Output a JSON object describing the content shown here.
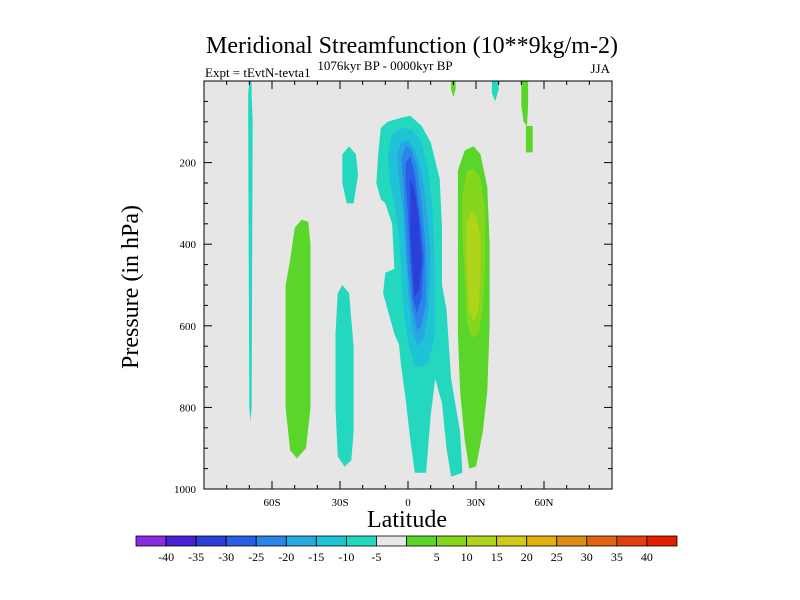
{
  "chart_data": {
    "type": "contour",
    "title": "Meridional Streamfunction (10**9kg/m-2)",
    "subtitle_left": "Expt = tEvtN-tevta1",
    "subtitle_center": "1076kyr BP - 0000kyr BP",
    "subtitle_right": "JJA",
    "xlabel": "Latitude",
    "ylabel": "Pressure (in hPa)",
    "xlim": [
      -90,
      90
    ],
    "ylim": [
      0,
      1000
    ],
    "y_inverted": true,
    "x_ticks": [
      {
        "value": -60,
        "label": "60S"
      },
      {
        "value": -30,
        "label": "30S"
      },
      {
        "value": 0,
        "label": "0"
      },
      {
        "value": 30,
        "label": "30N"
      },
      {
        "value": 60,
        "label": "60N"
      }
    ],
    "y_ticks": [
      {
        "value": 200,
        "label": "200"
      },
      {
        "value": 400,
        "label": "400"
      },
      {
        "value": 600,
        "label": "600"
      },
      {
        "value": 800,
        "label": "800"
      },
      {
        "value": 1000,
        "label": "1000"
      }
    ],
    "colorbar": {
      "colors": [
        "#8a2be2",
        "#4b1fd6",
        "#2c3fd8",
        "#2a5ee6",
        "#2a86e8",
        "#27a8e0",
        "#1fc3d6",
        "#24d8c0",
        "#e6e6e6",
        "#5ad52a",
        "#86d61e",
        "#b0d41c",
        "#d2c81a",
        "#e0b010",
        "#e08c10",
        "#e06410",
        "#e04010",
        "#e02000"
      ],
      "labels": [
        "-40",
        "-35",
        "-30",
        "-25",
        "-20",
        "-15",
        "-10",
        "-5",
        "5",
        "10",
        "15",
        "20",
        "25",
        "30",
        "35",
        "40"
      ]
    },
    "contour_regions": [
      {
        "level": "-5",
        "color": "#24d8c0",
        "points": [
          [
            -70,
            0
          ],
          [
            -69,
            0
          ],
          [
            -69,
            30
          ],
          [
            -68.5,
            100
          ],
          [
            -69,
            800
          ],
          [
            -69.5,
            835
          ],
          [
            -70,
            800
          ],
          [
            -70.5,
            100
          ],
          [
            -70.5,
            30
          ]
        ]
      },
      {
        "level": "5",
        "color": "#5ad52a",
        "points": [
          [
            -52,
            440
          ],
          [
            -50,
            360
          ],
          [
            -47,
            340
          ],
          [
            -44,
            345
          ],
          [
            -43,
            400
          ],
          [
            -43,
            800
          ],
          [
            -45,
            900
          ],
          [
            -49,
            925
          ],
          [
            -52,
            905
          ],
          [
            -54,
            800
          ],
          [
            -54,
            500
          ]
        ]
      },
      {
        "level": "-5",
        "color": "#24d8c0",
        "points": [
          [
            -29,
            180
          ],
          [
            -26,
            160
          ],
          [
            -23,
            180
          ],
          [
            -22,
            230
          ],
          [
            -24,
            300
          ],
          [
            -27,
            300
          ],
          [
            -29,
            250
          ]
        ]
      },
      {
        "level": "-5",
        "color": "#24d8c0",
        "points": [
          [
            -31,
            520
          ],
          [
            -29,
            500
          ],
          [
            -26,
            520
          ],
          [
            -24,
            650
          ],
          [
            -24,
            860
          ],
          [
            -25,
            930
          ],
          [
            -28,
            945
          ],
          [
            -31,
            920
          ],
          [
            -32,
            800
          ],
          [
            -32,
            620
          ]
        ]
      },
      {
        "level": "-5",
        "color": "#24d8c0",
        "points": [
          [
            -14,
            250
          ],
          [
            -13,
            170
          ],
          [
            -12,
            115
          ],
          [
            -9,
            100
          ],
          [
            -3,
            90
          ],
          [
            1,
            85
          ],
          [
            6,
            110
          ],
          [
            10,
            150
          ],
          [
            14,
            240
          ],
          [
            15,
            360
          ],
          [
            15,
            500
          ],
          [
            17,
            560
          ],
          [
            19,
            730
          ],
          [
            23,
            860
          ],
          [
            24,
            960
          ],
          [
            19,
            970
          ],
          [
            17,
            900
          ],
          [
            15,
            790
          ],
          [
            12,
            730
          ],
          [
            10,
            820
          ],
          [
            8,
            960
          ],
          [
            3,
            960
          ],
          [
            1,
            880
          ],
          [
            -1,
            780
          ],
          [
            -3,
            700
          ],
          [
            -4,
            645
          ],
          [
            -6,
            620
          ],
          [
            -11,
            520
          ],
          [
            -10,
            470
          ],
          [
            -6,
            460
          ],
          [
            -7,
            350
          ],
          [
            -10,
            300
          ],
          [
            -12,
            290
          ]
        ]
      },
      {
        "level": "-10",
        "color": "#1fc3d6",
        "points": [
          [
            -9,
            180
          ],
          [
            -7,
            130
          ],
          [
            -3,
            115
          ],
          [
            2,
            120
          ],
          [
            6,
            150
          ],
          [
            9,
            220
          ],
          [
            11,
            330
          ],
          [
            12,
            470
          ],
          [
            12,
            620
          ],
          [
            9,
            690
          ],
          [
            6,
            700
          ],
          [
            3,
            700
          ],
          [
            0,
            640
          ],
          [
            -2,
            560
          ],
          [
            -3,
            470
          ],
          [
            -4,
            380
          ],
          [
            -6,
            300
          ],
          [
            -8,
            250
          ]
        ]
      },
      {
        "level": "-15",
        "color": "#27a8e0",
        "points": [
          [
            -5,
            185
          ],
          [
            -3,
            150
          ],
          [
            0,
            145
          ],
          [
            3,
            170
          ],
          [
            6,
            220
          ],
          [
            8,
            300
          ],
          [
            10,
            420
          ],
          [
            9,
            560
          ],
          [
            7,
            630
          ],
          [
            4,
            650
          ],
          [
            2,
            610
          ],
          [
            0,
            520
          ],
          [
            -1,
            430
          ],
          [
            -2,
            330
          ],
          [
            -4,
            240
          ]
        ]
      },
      {
        "level": "-20",
        "color": "#2a86e8",
        "points": [
          [
            -3,
            190
          ],
          [
            -1,
            160
          ],
          [
            1,
            165
          ],
          [
            4,
            210
          ],
          [
            6,
            300
          ],
          [
            8,
            420
          ],
          [
            8,
            540
          ],
          [
            6,
            600
          ],
          [
            4,
            610
          ],
          [
            2,
            560
          ],
          [
            0,
            470
          ],
          [
            -1,
            360
          ],
          [
            -2,
            260
          ]
        ]
      },
      {
        "level": "-25",
        "color": "#2a5ee6",
        "points": [
          [
            -1,
            200
          ],
          [
            1,
            185
          ],
          [
            3,
            230
          ],
          [
            5,
            320
          ],
          [
            7,
            430
          ],
          [
            6,
            530
          ],
          [
            4,
            570
          ],
          [
            2,
            530
          ],
          [
            1,
            440
          ],
          [
            0,
            330
          ],
          [
            -1,
            250
          ]
        ]
      },
      {
        "level": "-30",
        "color": "#2c3fd8",
        "points": [
          [
            1,
            240
          ],
          [
            3,
            270
          ],
          [
            5,
            350
          ],
          [
            6,
            440
          ],
          [
            5,
            510
          ],
          [
            3,
            530
          ],
          [
            2,
            470
          ],
          [
            1,
            370
          ],
          [
            1,
            290
          ]
        ]
      },
      {
        "level": "5",
        "color": "#5ad52a",
        "points": [
          [
            22,
            220
          ],
          [
            25,
            170
          ],
          [
            29,
            160
          ],
          [
            32,
            180
          ],
          [
            35,
            260
          ],
          [
            36,
            400
          ],
          [
            36,
            600
          ],
          [
            35,
            760
          ],
          [
            33,
            860
          ],
          [
            30,
            945
          ],
          [
            27,
            950
          ],
          [
            25,
            880
          ],
          [
            23,
            760
          ],
          [
            22,
            620
          ],
          [
            22,
            420
          ]
        ]
      },
      {
        "level": "10",
        "color": "#86d61e",
        "points": [
          [
            24,
            280
          ],
          [
            26,
            220
          ],
          [
            29,
            215
          ],
          [
            32,
            240
          ],
          [
            34,
            320
          ],
          [
            34,
            450
          ],
          [
            33,
            560
          ],
          [
            31,
            620
          ],
          [
            28,
            630
          ],
          [
            26,
            590
          ],
          [
            25,
            480
          ],
          [
            24,
            380
          ]
        ]
      },
      {
        "level": "15",
        "color": "#b0d41c",
        "points": [
          [
            26,
            350
          ],
          [
            28,
            320
          ],
          [
            30,
            330
          ],
          [
            32,
            380
          ],
          [
            32,
            480
          ],
          [
            31,
            560
          ],
          [
            29,
            590
          ],
          [
            27,
            560
          ],
          [
            26,
            470
          ]
        ]
      },
      {
        "level": "5",
        "color": "#5ad52a",
        "points": [
          [
            19,
            0
          ],
          [
            21,
            0
          ],
          [
            21,
            20
          ],
          [
            20,
            40
          ],
          [
            19,
            20
          ]
        ]
      },
      {
        "level": "-5",
        "color": "#24d8c0",
        "points": [
          [
            37,
            0
          ],
          [
            40,
            0
          ],
          [
            40,
            20
          ],
          [
            38.5,
            50
          ],
          [
            37,
            30
          ]
        ]
      },
      {
        "level": "5",
        "color": "#5ad52a",
        "points": [
          [
            50,
            0
          ],
          [
            53,
            0
          ],
          [
            53,
            60
          ],
          [
            52.5,
            110
          ],
          [
            51,
            100
          ],
          [
            50,
            60
          ]
        ]
      },
      {
        "level": "5",
        "color": "#5ad52a",
        "points": [
          [
            52,
            110
          ],
          [
            55,
            110
          ],
          [
            55,
            175
          ],
          [
            52,
            175
          ]
        ]
      }
    ]
  }
}
